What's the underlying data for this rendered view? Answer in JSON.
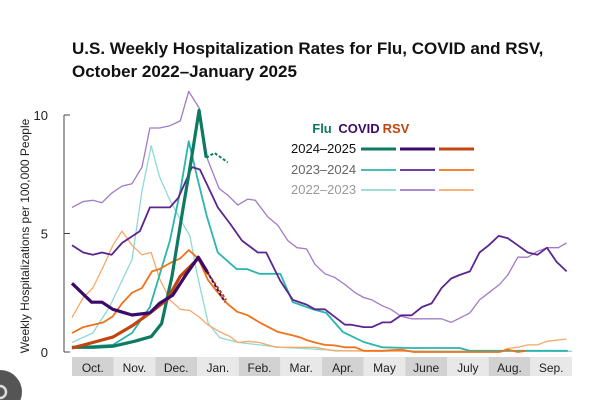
{
  "chart_data": {
    "type": "line",
    "title": "U.S. Weekly Hospitalization Rates for Flu, COVID and RSV, October 2022–January 2025",
    "ylabel": "Weekly Hospitalizations per 100,000 People",
    "xlabel": "",
    "ylim": [
      0,
      10
    ],
    "yticks": [
      0,
      5,
      10
    ],
    "x_unit": "months since Oct. 1",
    "xlim": [
      0,
      12
    ],
    "month_labels": [
      "Oct.",
      "Nov.",
      "Dec.",
      "Jan.",
      "Feb.",
      "Mar.",
      "Apr.",
      "May",
      "June",
      "July",
      "Aug.",
      "Sep."
    ],
    "legend": {
      "columns": [
        "Flu",
        "COVID",
        "RSV"
      ],
      "rows": [
        "2024–2025",
        "2023–2024",
        "2022–2023"
      ],
      "placement": "top-right"
    },
    "colors": {
      "flu": [
        "#0e7a62",
        "#2bb5ad",
        "#8fd9d3"
      ],
      "covid": [
        "#3c0a6b",
        "#5c2490",
        "#a27ac7"
      ],
      "rsv": [
        "#c2440f",
        "#f0721a",
        "#f8a868"
      ]
    },
    "series": [
      {
        "name": "Flu 2022–2023",
        "disease": "flu",
        "season": 2,
        "points": [
          [
            0,
            0.4
          ],
          [
            0.5,
            0.8
          ],
          [
            0.9,
            1.9
          ],
          [
            1.44,
            3.9
          ],
          [
            1.68,
            6.8
          ],
          [
            1.9,
            8.7
          ],
          [
            2.1,
            7.4
          ],
          [
            2.35,
            6.4
          ],
          [
            2.6,
            5.6
          ],
          [
            2.83,
            4.9
          ],
          [
            3.0,
            3.3
          ],
          [
            3.27,
            1.2
          ],
          [
            3.55,
            0.6
          ],
          [
            4.0,
            0.4
          ],
          [
            4.5,
            0.3
          ],
          [
            5.0,
            0.2
          ],
          [
            5.5,
            0.15
          ],
          [
            6.5,
            0.05
          ],
          [
            12,
            0.03
          ]
        ]
      },
      {
        "name": "COVID 2022–2023",
        "disease": "covid",
        "season": 2,
        "points": [
          [
            0,
            6.1
          ],
          [
            0.27,
            6.35
          ],
          [
            0.5,
            6.4
          ],
          [
            0.72,
            6.3
          ],
          [
            0.95,
            6.7
          ],
          [
            1.2,
            7.0
          ],
          [
            1.44,
            7.1
          ],
          [
            1.68,
            7.8
          ],
          [
            1.87,
            9.45
          ],
          [
            2.1,
            9.45
          ],
          [
            2.35,
            9.55
          ],
          [
            2.6,
            9.75
          ],
          [
            2.8,
            11.0
          ],
          [
            3.05,
            10.3
          ],
          [
            3.26,
            8.1
          ],
          [
            3.53,
            6.9
          ],
          [
            3.75,
            6.6
          ],
          [
            3.98,
            6.2
          ],
          [
            4.22,
            6.45
          ],
          [
            4.4,
            6.4
          ],
          [
            4.7,
            5.7
          ],
          [
            4.94,
            5.35
          ],
          [
            5.18,
            4.7
          ],
          [
            5.4,
            4.4
          ],
          [
            5.63,
            4.35
          ],
          [
            5.83,
            3.7
          ],
          [
            6.07,
            3.3
          ],
          [
            6.3,
            3.15
          ],
          [
            6.55,
            2.85
          ],
          [
            6.8,
            2.5
          ],
          [
            7.0,
            2.3
          ],
          [
            7.2,
            2.2
          ],
          [
            7.45,
            1.95
          ],
          [
            7.65,
            1.8
          ],
          [
            7.9,
            1.5
          ],
          [
            8.15,
            1.4
          ],
          [
            8.87,
            1.4
          ],
          [
            9.1,
            1.25
          ],
          [
            9.55,
            1.65
          ],
          [
            9.78,
            2.2
          ],
          [
            10.0,
            2.5
          ],
          [
            10.26,
            2.85
          ],
          [
            10.46,
            3.25
          ],
          [
            10.7,
            4.0
          ],
          [
            10.94,
            4.0
          ],
          [
            11.17,
            4.25
          ],
          [
            11.4,
            4.4
          ],
          [
            11.67,
            4.4
          ],
          [
            11.87,
            4.6
          ]
        ]
      },
      {
        "name": "RSV 2022–2023",
        "disease": "rsv",
        "season": 2,
        "points": [
          [
            0,
            1.45
          ],
          [
            0.27,
            2.3
          ],
          [
            0.5,
            2.7
          ],
          [
            0.75,
            3.6
          ],
          [
            0.98,
            4.5
          ],
          [
            1.2,
            5.1
          ],
          [
            1.44,
            4.5
          ],
          [
            1.68,
            4.1
          ],
          [
            1.9,
            4.2
          ],
          [
            2.1,
            3.1
          ],
          [
            2.35,
            2.2
          ],
          [
            2.6,
            1.8
          ],
          [
            2.83,
            1.75
          ],
          [
            3.03,
            1.5
          ],
          [
            3.26,
            1.15
          ],
          [
            3.55,
            0.85
          ],
          [
            3.8,
            0.65
          ],
          [
            3.98,
            0.4
          ],
          [
            4.22,
            0.45
          ],
          [
            4.5,
            0.4
          ],
          [
            4.9,
            0.2
          ],
          [
            5.83,
            0.2
          ],
          [
            6.3,
            0.05
          ],
          [
            10.26,
            0.0
          ],
          [
            10.46,
            0.15
          ],
          [
            10.7,
            0.2
          ],
          [
            10.94,
            0.3
          ],
          [
            11.17,
            0.3
          ],
          [
            11.4,
            0.45
          ],
          [
            11.87,
            0.55
          ]
        ]
      },
      {
        "name": "Flu 2023–2024",
        "disease": "flu",
        "season": 1,
        "points": [
          [
            0,
            0.2
          ],
          [
            0.98,
            0.3
          ],
          [
            1.44,
            0.8
          ],
          [
            1.87,
            1.9
          ],
          [
            2.35,
            4.7
          ],
          [
            2.6,
            6.8
          ],
          [
            2.8,
            8.9
          ],
          [
            3.0,
            7.4
          ],
          [
            3.24,
            5.7
          ],
          [
            3.5,
            4.2
          ],
          [
            3.95,
            3.5
          ],
          [
            4.2,
            3.5
          ],
          [
            4.5,
            3.3
          ],
          [
            5.0,
            3.3
          ],
          [
            5.3,
            2.1
          ],
          [
            5.47,
            2.0
          ],
          [
            5.78,
            1.8
          ],
          [
            6.1,
            1.65
          ],
          [
            6.5,
            0.85
          ],
          [
            7.0,
            0.42
          ],
          [
            7.45,
            0.2
          ],
          [
            8.1,
            0.17
          ],
          [
            9.3,
            0.17
          ],
          [
            9.55,
            0.05
          ],
          [
            11.9,
            0.05
          ]
        ]
      },
      {
        "name": "COVID 2023–2024",
        "disease": "covid",
        "season": 1,
        "points": [
          [
            0,
            4.5
          ],
          [
            0.27,
            4.2
          ],
          [
            0.5,
            4.1
          ],
          [
            0.72,
            4.2
          ],
          [
            0.95,
            4.1
          ],
          [
            1.2,
            4.6
          ],
          [
            1.63,
            5.1
          ],
          [
            1.87,
            6.1
          ],
          [
            2.35,
            6.1
          ],
          [
            2.55,
            6.5
          ],
          [
            2.88,
            7.8
          ],
          [
            3.07,
            7.7
          ],
          [
            3.26,
            7.0
          ],
          [
            3.5,
            6.1
          ],
          [
            3.8,
            5.4
          ],
          [
            4.08,
            4.7
          ],
          [
            4.46,
            4.2
          ],
          [
            4.66,
            4.2
          ],
          [
            5.0,
            3.0
          ],
          [
            5.3,
            2.2
          ],
          [
            5.63,
            2.0
          ],
          [
            5.83,
            1.8
          ],
          [
            6.07,
            1.8
          ],
          [
            6.55,
            1.15
          ],
          [
            6.7,
            1.15
          ],
          [
            7.0,
            1.05
          ],
          [
            7.2,
            1.05
          ],
          [
            7.45,
            1.25
          ],
          [
            7.65,
            1.25
          ],
          [
            7.9,
            1.55
          ],
          [
            8.15,
            1.55
          ],
          [
            8.4,
            1.9
          ],
          [
            8.63,
            2.05
          ],
          [
            8.87,
            2.7
          ],
          [
            9.1,
            3.1
          ],
          [
            9.3,
            3.25
          ],
          [
            9.55,
            3.4
          ],
          [
            9.78,
            4.2
          ],
          [
            10.0,
            4.5
          ],
          [
            10.24,
            4.9
          ],
          [
            10.46,
            4.8
          ],
          [
            10.7,
            4.5
          ],
          [
            10.94,
            4.2
          ],
          [
            11.17,
            4.1
          ],
          [
            11.4,
            4.4
          ],
          [
            11.63,
            3.8
          ],
          [
            11.87,
            3.4
          ]
        ]
      },
      {
        "name": "RSV 2023–2024",
        "disease": "rsv",
        "season": 1,
        "points": [
          [
            0,
            0.8
          ],
          [
            0.27,
            1.05
          ],
          [
            0.75,
            1.25
          ],
          [
            0.98,
            1.5
          ],
          [
            1.2,
            2.05
          ],
          [
            1.44,
            2.5
          ],
          [
            1.68,
            2.7
          ],
          [
            1.92,
            3.4
          ],
          [
            2.1,
            3.5
          ],
          [
            2.35,
            3.75
          ],
          [
            2.6,
            3.95
          ],
          [
            2.8,
            4.3
          ],
          [
            3.03,
            3.95
          ],
          [
            3.26,
            3.05
          ],
          [
            3.48,
            2.55
          ],
          [
            3.72,
            2.05
          ],
          [
            3.96,
            1.7
          ],
          [
            4.22,
            1.55
          ],
          [
            4.5,
            1.25
          ],
          [
            4.94,
            0.85
          ],
          [
            5.3,
            0.7
          ],
          [
            5.5,
            0.6
          ],
          [
            5.63,
            0.5
          ],
          [
            5.83,
            0.4
          ],
          [
            6.07,
            0.3
          ],
          [
            6.3,
            0.28
          ],
          [
            6.55,
            0.2
          ],
          [
            6.8,
            0.2
          ],
          [
            7.0,
            0.05
          ],
          [
            7.45,
            0.05
          ],
          [
            7.9,
            0.1
          ],
          [
            8.2,
            0.0
          ],
          [
            10.26,
            0.0
          ],
          [
            10.46,
            0.1
          ],
          [
            10.7,
            0.0
          ],
          [
            10.9,
            0.05
          ]
        ]
      },
      {
        "name": "Flu 2024–2025",
        "disease": "flu",
        "season": 0,
        "points": [
          [
            0,
            0.2
          ],
          [
            0.5,
            0.2
          ],
          [
            1.0,
            0.25
          ],
          [
            1.5,
            0.45
          ],
          [
            1.9,
            0.65
          ],
          [
            2.15,
            1.2
          ],
          [
            2.4,
            3.2
          ],
          [
            2.65,
            5.9
          ],
          [
            2.87,
            8.2
          ],
          [
            3.05,
            10.2
          ],
          [
            3.22,
            8.2
          ]
        ],
        "projected": [
          [
            3.22,
            8.2
          ],
          [
            3.42,
            8.4
          ],
          [
            3.74,
            8.0
          ]
        ]
      },
      {
        "name": "RSV 2024–2025",
        "disease": "rsv",
        "season": 0,
        "points": [
          [
            0,
            0.17
          ],
          [
            0.5,
            0.4
          ],
          [
            0.98,
            0.63
          ],
          [
            1.44,
            1.1
          ],
          [
            1.87,
            1.65
          ],
          [
            2.28,
            2.2
          ],
          [
            2.6,
            3.2
          ],
          [
            2.83,
            3.6
          ],
          [
            3.03,
            3.95
          ],
          [
            3.27,
            3.3
          ]
        ],
        "projected": [
          [
            3.27,
            3.3
          ],
          [
            3.7,
            2.2
          ]
        ]
      },
      {
        "name": "COVID 2024–2025",
        "disease": "covid",
        "season": 0,
        "points": [
          [
            0,
            2.9
          ],
          [
            0.47,
            2.1
          ],
          [
            0.72,
            2.1
          ],
          [
            0.98,
            1.8
          ],
          [
            1.44,
            1.56
          ],
          [
            1.87,
            1.65
          ],
          [
            2.1,
            2.05
          ],
          [
            2.42,
            2.4
          ],
          [
            2.75,
            3.3
          ],
          [
            3.03,
            4.0
          ],
          [
            3.24,
            3.4
          ]
        ],
        "projected": [
          [
            3.24,
            3.4
          ],
          [
            3.67,
            2.1
          ]
        ]
      }
    ]
  }
}
